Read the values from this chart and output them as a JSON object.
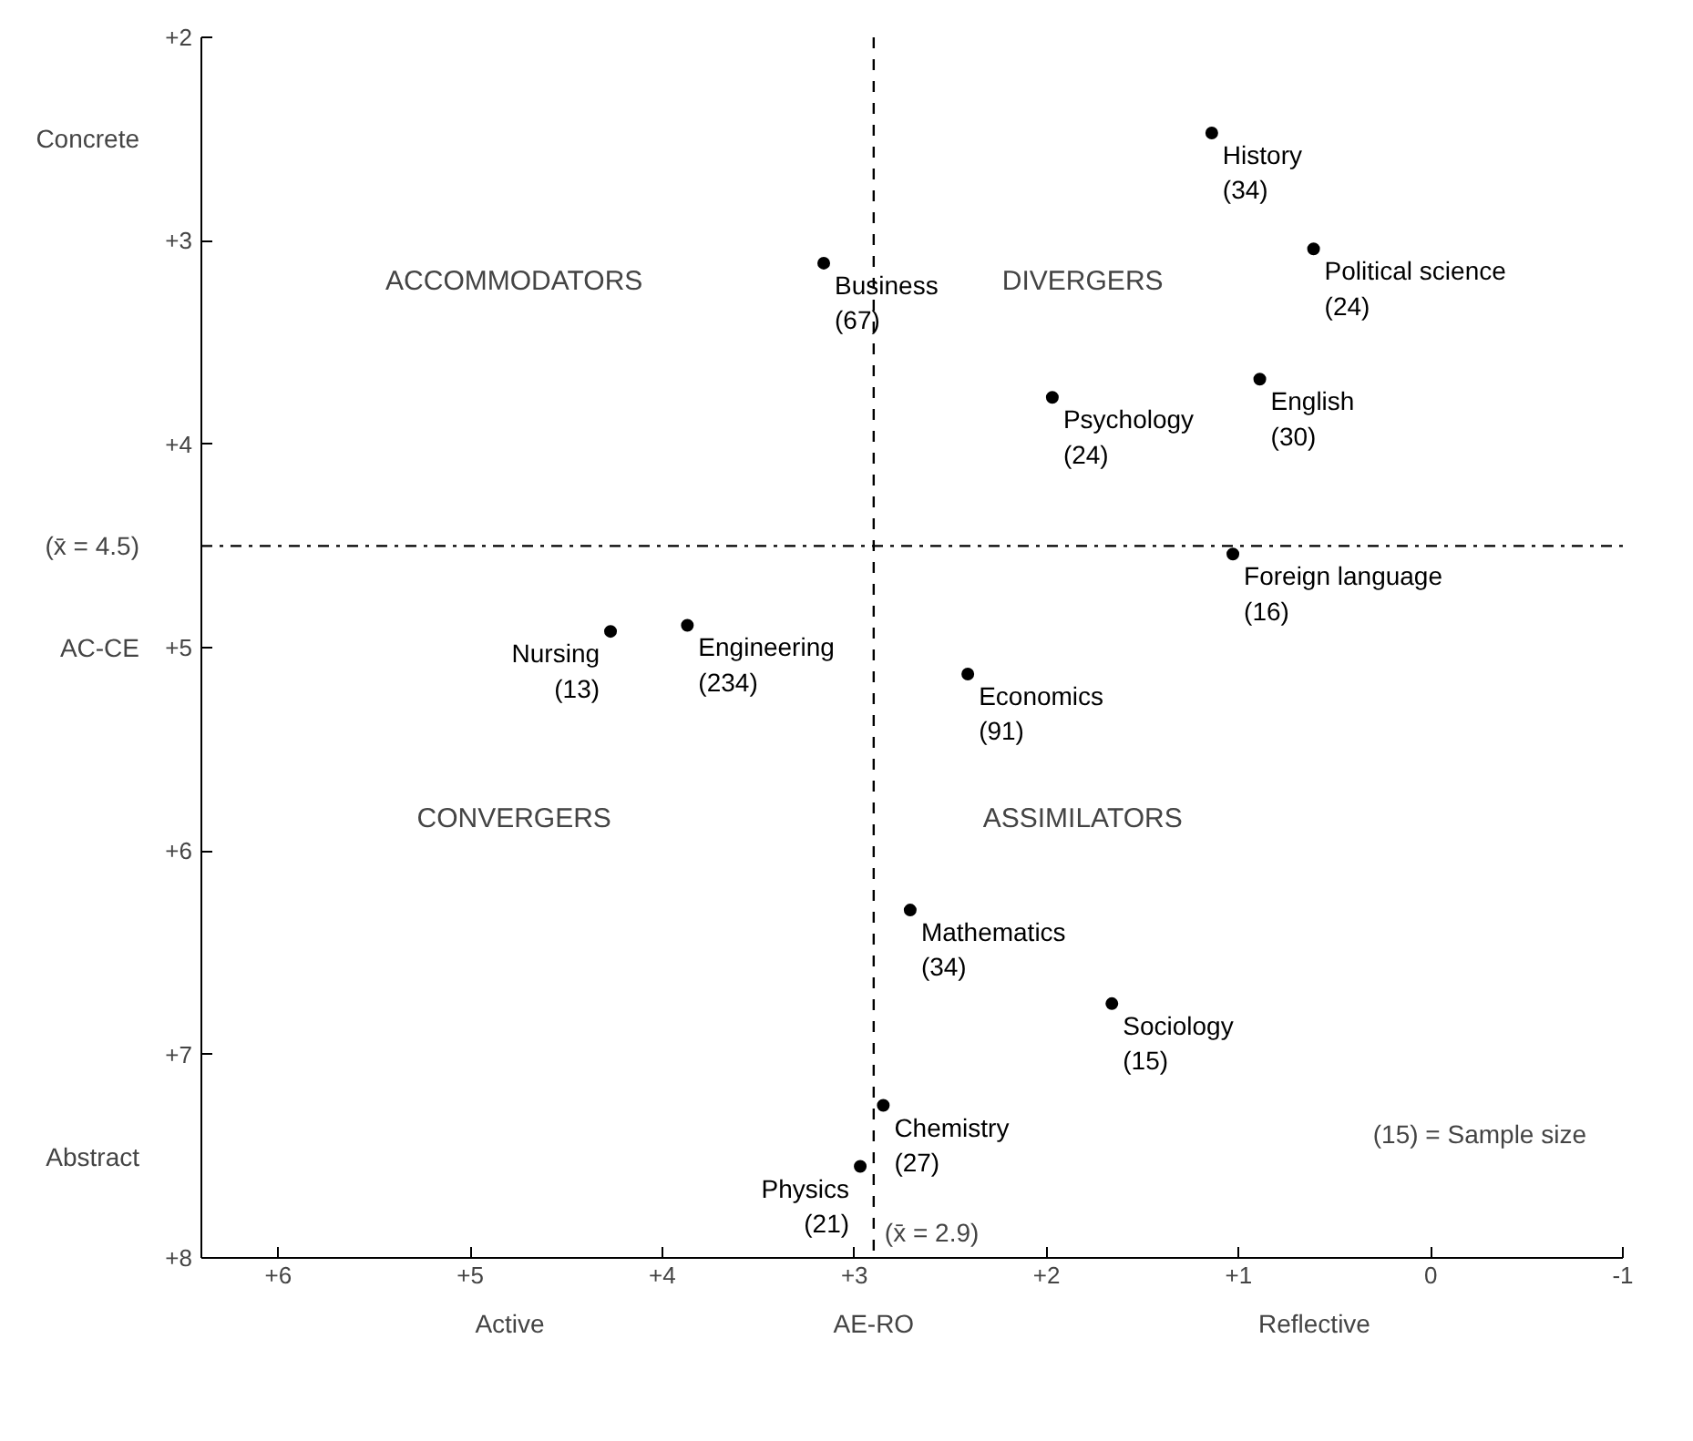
{
  "chart_data": {
    "type": "scatter",
    "xlabel": "AE-RO",
    "ylabel": "AC-CE",
    "xlim": [
      6.4,
      -1
    ],
    "ylim": [
      8,
      2
    ],
    "xticks": [
      {
        "value": 6,
        "label": "+6"
      },
      {
        "value": 5,
        "label": "+5"
      },
      {
        "value": 4,
        "label": "+4"
      },
      {
        "value": 3,
        "label": "+3"
      },
      {
        "value": 2,
        "label": "+2"
      },
      {
        "value": 1,
        "label": "+1"
      },
      0,
      -1
    ],
    "yticks": [
      {
        "value": 2,
        "label": "+2"
      },
      {
        "value": 3,
        "label": "+3"
      },
      {
        "value": 4,
        "label": "+4"
      },
      {
        "value": 5,
        "label": "+5"
      },
      {
        "value": 6,
        "label": "+6"
      },
      {
        "value": 7,
        "label": "+7"
      },
      {
        "value": 8,
        "label": "+8"
      }
    ],
    "marker": "circle",
    "grid": false,
    "series": [
      {
        "name": "History\n(34)",
        "color": "#000000",
        "x": [
          1.14
        ],
        "values": [
          2.47
        ]
      },
      {
        "name": "Political science\n(24)",
        "color": "#000000",
        "x": [
          0.61
        ],
        "values": [
          3.04
        ]
      },
      {
        "name": "Business\n(67)",
        "color": "#000000",
        "x": [
          3.16
        ],
        "values": [
          3.11
        ]
      },
      {
        "name": "English\n(30)",
        "color": "#000000",
        "x": [
          0.89
        ],
        "values": [
          3.68
        ]
      },
      {
        "name": "Psychology\n(24)",
        "color": "#000000",
        "x": [
          1.97
        ],
        "values": [
          3.77
        ]
      },
      {
        "name": "Foreign language\n(16)",
        "color": "#000000",
        "x": [
          1.03
        ],
        "values": [
          4.54
        ]
      },
      {
        "name": "Nursing\n(13)",
        "color": "#000000",
        "x": [
          4.27
        ],
        "values": [
          4.92
        ]
      },
      {
        "name": "Engineering\n(234)",
        "color": "#000000",
        "x": [
          3.87
        ],
        "values": [
          4.89
        ]
      },
      {
        "name": "Economics\n(91)",
        "color": "#000000",
        "x": [
          2.41
        ],
        "values": [
          5.13
        ]
      },
      {
        "name": "Mathematics\n(34)",
        "color": "#000000",
        "x": [
          2.71
        ],
        "values": [
          6.29
        ]
      },
      {
        "name": "Sociology\n(15)",
        "color": "#000000",
        "x": [
          1.66
        ],
        "values": [
          6.75
        ]
      },
      {
        "name": "Chemistry\n(27)",
        "color": "#000000",
        "x": [
          2.85
        ],
        "values": [
          7.25
        ]
      },
      {
        "name": "Physics\n(21)",
        "color": "#000000",
        "x": [
          2.97
        ],
        "values": [
          7.55
        ]
      }
    ],
    "ref_lines": [
      {
        "axis": "x",
        "value": 2.9,
        "label": "(x̄ = 2.9)",
        "line_style": "dashed",
        "color": "#000000"
      },
      {
        "axis": "y",
        "value": 4.5,
        "label": "(x̄ = 4.5)",
        "line_style": "dashdot",
        "color": "#000000"
      }
    ],
    "annotations": [
      "ACCOMMODATORS",
      "DIVERGERS",
      "CONVERGERS",
      "ASSIMILATORS",
      "Concrete",
      "Abstract",
      "Active",
      "Reflective",
      "(15) = Sample size"
    ]
  }
}
